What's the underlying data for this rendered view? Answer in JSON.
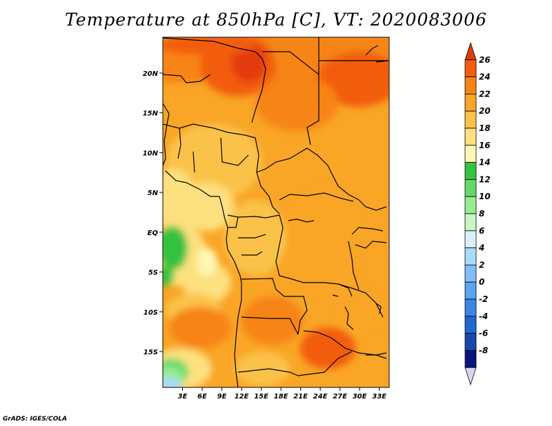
{
  "title": "Temperature at 850hPa [C], VT: 2020083006",
  "credit": "GrADS: IGES/COLA",
  "map": {
    "lon_range": [
      0,
      34.5
    ],
    "lat_range": [
      -19.5,
      24.5
    ],
    "lon_ticks": [
      {
        "value": 3,
        "label": "3E"
      },
      {
        "value": 6,
        "label": "6E"
      },
      {
        "value": 9,
        "label": "9E"
      },
      {
        "value": 12,
        "label": "12E"
      },
      {
        "value": 15,
        "label": "15E"
      },
      {
        "value": 18,
        "label": "18E"
      },
      {
        "value": 21,
        "label": "21E"
      },
      {
        "value": 24,
        "label": "24E"
      },
      {
        "value": 27,
        "label": "27E"
      },
      {
        "value": 30,
        "label": "30E"
      },
      {
        "value": 33,
        "label": "33E"
      }
    ],
    "lat_ticks": [
      {
        "value": 20,
        "label": "20N"
      },
      {
        "value": 15,
        "label": "15N"
      },
      {
        "value": 10,
        "label": "10N"
      },
      {
        "value": 5,
        "label": "5N"
      },
      {
        "value": 0,
        "label": "EQ"
      },
      {
        "value": -5,
        "label": "5S"
      },
      {
        "value": -10,
        "label": "10S"
      },
      {
        "value": -15,
        "label": "15S"
      }
    ]
  },
  "colorbar": {
    "levels": [
      26,
      24,
      22,
      20,
      18,
      16,
      14,
      12,
      10,
      8,
      6,
      4,
      2,
      0,
      -2,
      -4,
      -6,
      -8
    ],
    "labels": [
      "26",
      "24",
      "22",
      "20",
      "18",
      "16",
      "14",
      "12",
      "10",
      "8",
      "6",
      "4",
      "2",
      "0",
      "-2",
      "-4",
      "-6",
      "-8"
    ],
    "colors": [
      "#e33a0b",
      "#f25d0f",
      "#f78416",
      "#f9a526",
      "#fac248",
      "#fde07f",
      "#fff7b4",
      "#36c240",
      "#63d96a",
      "#98ec90",
      "#c8f6c4",
      "#d9f0fb",
      "#abd9fb",
      "#80bff7",
      "#5aa4f0",
      "#3a87e4",
      "#1f68d0",
      "#1748ad",
      "#09157a",
      "#d8d4f2"
    ]
  }
}
